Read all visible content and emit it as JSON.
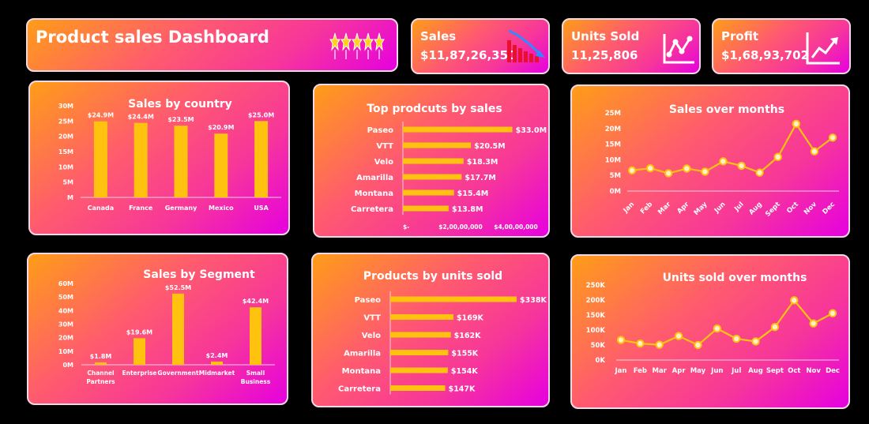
{
  "header": {
    "title": "Product sales Dashboard",
    "icon": "star-rating-icon"
  },
  "kpis": [
    {
      "label": "Sales",
      "value": "$11,87,26,350",
      "icon": "declining-bar-chart-icon"
    },
    {
      "label": "Units Sold",
      "value": "11,25,806",
      "icon": "line-chart-icon"
    },
    {
      "label": "Profit",
      "value": "$1,68,93,702",
      "icon": "trend-up-icon"
    }
  ],
  "colors": {
    "bar": "#ffc20e",
    "point_fill": "#fff0c8",
    "card_start": "#ff9d17",
    "card_end": "#e600e0",
    "border": "#f6d9e8"
  },
  "chart_data": [
    {
      "id": "sales_by_country",
      "type": "bar",
      "title": "Sales by country",
      "categories": [
        "Canada",
        "France",
        "Germany",
        "Mexico",
        "USA"
      ],
      "values": [
        24.9,
        24.4,
        23.5,
        20.9,
        25.0
      ],
      "data_labels": [
        "$24.9M",
        "$24.4M",
        "$23.5M",
        "$20.9M",
        "$25.0M"
      ],
      "yticks": [
        "M",
        "5M",
        "10M",
        "15M",
        "20M",
        "25M",
        "30M"
      ],
      "ylim": [
        0,
        30
      ]
    },
    {
      "id": "top_products_by_sales",
      "type": "bar",
      "orientation": "horizontal",
      "title": "Top prodcuts by sales",
      "categories": [
        "Paseo",
        "VTT",
        "Velo",
        "Amarilla",
        "Montana",
        "Carretera"
      ],
      "values": [
        33.0,
        20.5,
        18.3,
        17.7,
        15.4,
        13.8
      ],
      "data_labels": [
        "$33.0M",
        "$20.5M",
        "$18.3M",
        "$17.7M",
        "$15.4M",
        "$13.8M"
      ],
      "xticks": [
        "$-",
        "$2,00,00,000",
        "$4,00,00,000"
      ],
      "xlim": [
        0,
        40
      ]
    },
    {
      "id": "sales_over_months",
      "type": "line",
      "title": "Sales over months",
      "categories": [
        "Jan",
        "Feb",
        "Mar",
        "Apr",
        "May",
        "Jun",
        "Jul",
        "Aug",
        "Sept",
        "Oct",
        "Nov",
        "Dec"
      ],
      "values": [
        6.6,
        7.3,
        5.7,
        7.2,
        6.2,
        9.5,
        8.1,
        5.9,
        10.9,
        21.5,
        12.7,
        17.1
      ],
      "yticks": [
        "0M",
        "5M",
        "10M",
        "15M",
        "20M",
        "25M"
      ],
      "ylim": [
        0,
        25
      ]
    },
    {
      "id": "sales_by_segment",
      "type": "bar",
      "title": "Sales by Segment",
      "categories": [
        "Channel\nPartners",
        "Enterprise",
        "Government",
        "Midmarket",
        "Small\nBusiness"
      ],
      "values": [
        1.8,
        19.6,
        52.5,
        2.4,
        42.4
      ],
      "data_labels": [
        "$1.8M",
        "$19.6M",
        "$52.5M",
        "$2.4M",
        "$42.4M"
      ],
      "yticks": [
        "0M",
        "10M",
        "20M",
        "30M",
        "40M",
        "50M",
        "60M"
      ],
      "ylim": [
        0,
        60
      ]
    },
    {
      "id": "products_by_units_sold",
      "type": "bar",
      "orientation": "horizontal",
      "title": "Products by units sold",
      "categories": [
        "Paseo",
        "VTT",
        "Velo",
        "Amarilla",
        "Montana",
        "Carretera"
      ],
      "values": [
        338,
        169,
        162,
        155,
        154,
        147
      ],
      "data_labels": [
        "$338K",
        "$169K",
        "$162K",
        "$155K",
        "$154K",
        "$147K"
      ],
      "xlim": [
        0,
        338
      ]
    },
    {
      "id": "units_sold_over_months",
      "type": "line",
      "title": "Units sold over months",
      "categories": [
        "Jan",
        "Feb",
        "Mar",
        "Apr",
        "May",
        "Jun",
        "Jul",
        "Aug",
        "Sept",
        "Oct",
        "Nov",
        "Dec"
      ],
      "values": [
        67,
        55,
        51,
        80,
        50,
        105,
        71,
        62,
        110,
        199,
        122,
        156
      ],
      "yticks": [
        "0K",
        "50K",
        "100K",
        "150K",
        "200K",
        "250K"
      ],
      "ylim": [
        0,
        250
      ]
    }
  ]
}
